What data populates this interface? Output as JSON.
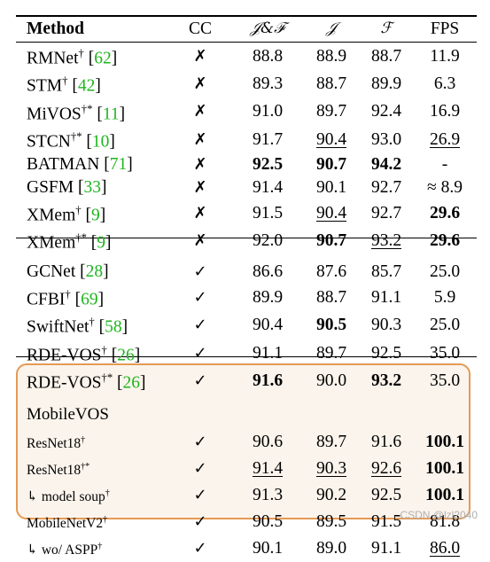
{
  "columns": {
    "method": "Method",
    "cc": "CC",
    "jf": "𝒥&ℱ",
    "j": "𝒥",
    "f": "ℱ",
    "fps": "FPS"
  },
  "group1": [
    {
      "name": "RMNet",
      "sup": "†",
      "cite": "62",
      "cc": "✗",
      "jf": "88.8",
      "j": "88.9",
      "f": "88.7",
      "fps": "11.9"
    },
    {
      "name": "STM",
      "sup": "†",
      "cite": "42",
      "cc": "✗",
      "jf": "89.3",
      "j": "88.7",
      "f": "89.9",
      "fps": "6.3"
    },
    {
      "name": "MiVOS",
      "sup": "†*",
      "cite": "11",
      "cc": "✗",
      "jf": "91.0",
      "j": "89.7",
      "f": "92.4",
      "fps": "16.9"
    },
    {
      "name": "STCN",
      "sup": "†*",
      "cite": "10",
      "cc": "✗",
      "jf": "91.7",
      "j": "90.4",
      "f": "93.0",
      "fps": "26.9"
    },
    {
      "name": "BATMAN",
      "sup": "",
      "cite": "71",
      "cc": "✗",
      "jf": "92.5",
      "j": "90.7",
      "f": "94.2",
      "fps": "-"
    },
    {
      "name": "GSFM",
      "sup": "",
      "cite": "33",
      "cc": "✗",
      "jf": "91.4",
      "j": "90.1",
      "f": "92.7",
      "fps": "≈ 8.9"
    },
    {
      "name": "XMem",
      "sup": "†",
      "cite": "9",
      "cc": "✗",
      "jf": "91.5",
      "j": "90.4",
      "f": "92.7",
      "fps": "29.6"
    },
    {
      "name": "XMem",
      "sup": "†*",
      "cite": "9",
      "cc": "✗",
      "jf": "92.0",
      "j": "90.7",
      "f": "93.2",
      "fps": "29.6"
    }
  ],
  "group2": [
    {
      "name": "GCNet",
      "sup": "",
      "cite": "28",
      "cc": "✓",
      "jf": "86.6",
      "j": "87.6",
      "f": "85.7",
      "fps": "25.0"
    },
    {
      "name": "CFBI",
      "sup": "†",
      "cite": "69",
      "cc": "✓",
      "jf": "89.9",
      "j": "88.7",
      "f": "91.1",
      "fps": "5.9"
    },
    {
      "name": "SwiftNet",
      "sup": "†",
      "cite": "58",
      "cc": "✓",
      "jf": "90.4",
      "j": "90.5",
      "f": "90.3",
      "fps": "25.0"
    },
    {
      "name": "RDE-VOS",
      "sup": "†",
      "cite": "26",
      "cc": "✓",
      "jf": "91.1",
      "j": "89.7",
      "f": "92.5",
      "fps": "35.0"
    },
    {
      "name": "RDE-VOS",
      "sup": "†*",
      "cite": "26",
      "cc": "✓",
      "jf": "91.6",
      "j": "90.0",
      "f": "93.2",
      "fps": "35.0"
    }
  ],
  "mobilevos": {
    "title": "MobileVOS",
    "rows": [
      {
        "name": "ResNet18",
        "sup": "†",
        "cc": "✓",
        "jf": "90.6",
        "j": "89.7",
        "f": "91.6",
        "fps": "100.1"
      },
      {
        "name": "ResNet18",
        "sup": "†*",
        "cc": "✓",
        "jf": "91.4",
        "j": "90.3",
        "f": "92.6",
        "fps": "100.1"
      },
      {
        "name": "↳ model soup",
        "sup": "†",
        "cc": "✓",
        "jf": "91.3",
        "j": "90.2",
        "f": "92.5",
        "fps": "100.1"
      },
      {
        "name": "MobileNetV2",
        "sup": "†",
        "cc": "✓",
        "jf": "90.5",
        "j": "89.5",
        "f": "91.5",
        "fps": "81.8"
      },
      {
        "name": "↳ wo/ ASPP",
        "sup": "†",
        "cc": "✓",
        "jf": "90.1",
        "j": "89.0",
        "f": "91.1",
        "fps": "86.0"
      }
    ]
  },
  "watermark": "CSDN @lzl2040"
}
